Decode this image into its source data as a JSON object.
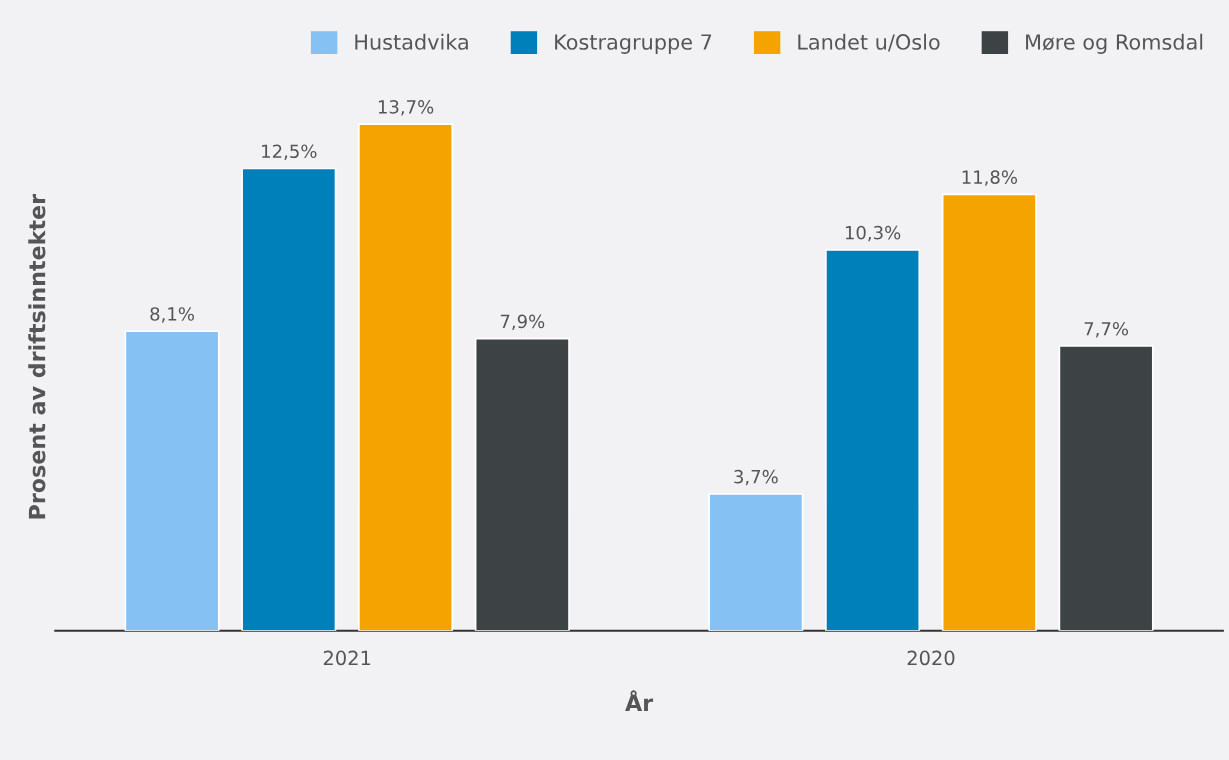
{
  "chart_data": {
    "type": "bar",
    "xlabel": "År",
    "ylabel": "Prosent av driftsinntekter",
    "categories": [
      "2021",
      "2020"
    ],
    "series": [
      {
        "name": "Hustadvika",
        "color": "#85c1f2",
        "values": [
          8.1,
          3.7
        ],
        "value_labels": [
          "8,1%",
          "3,7%"
        ]
      },
      {
        "name": "Kostragruppe 7",
        "color": "#0080bb",
        "values": [
          12.5,
          10.3
        ],
        "value_labels": [
          "12,5%",
          "10,3%"
        ]
      },
      {
        "name": "Landet u/Oslo",
        "color": "#f4a300",
        "values": [
          13.7,
          11.8
        ],
        "value_labels": [
          "13,7%",
          "11,8%"
        ]
      },
      {
        "name": "Møre og Romsdal",
        "color": "#3d4245",
        "values": [
          7.9,
          7.7
        ],
        "value_labels": [
          "7,9%",
          "7,7%"
        ]
      }
    ],
    "tick_labels": "x",
    "legend": "top"
  }
}
